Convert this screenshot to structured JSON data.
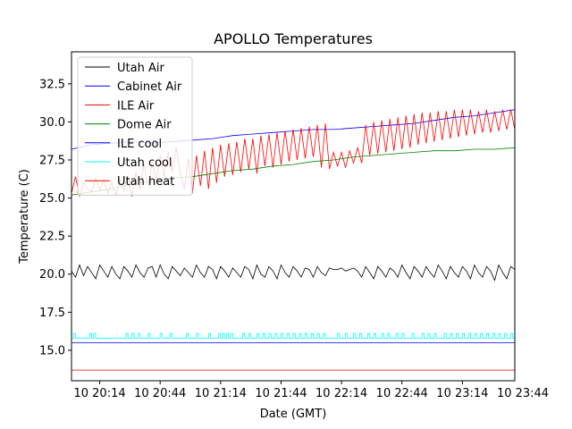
{
  "chart_data": {
    "type": "line",
    "title": "APOLLO Temperatures",
    "xlabel": "Date (GMT)",
    "ylabel": "Temperature (C)",
    "xlim": [
      0,
      220
    ],
    "ylim": [
      13.0,
      34.6
    ],
    "grid": false,
    "legend_position": "top-left",
    "x_unit": "minutes after 20:00 GMT",
    "x_ticks": [
      14,
      44,
      74,
      104,
      134,
      164,
      194,
      224
    ],
    "x_tick_labels": [
      "10 20:14",
      "10 20:44",
      "10 21:14",
      "10 21:44",
      "10 22:14",
      "10 22:44",
      "10 23:14",
      "10 23:44"
    ],
    "y_ticks": [
      15.0,
      17.5,
      20.0,
      22.5,
      25.0,
      27.5,
      30.0,
      32.5
    ],
    "y_tick_labels": [
      "15.0",
      "17.5",
      "20.0",
      "22.5",
      "25.0",
      "27.5",
      "30.0",
      "32.5"
    ],
    "series": [
      {
        "name": "Utah Air",
        "color": "#000000",
        "x": [
          0,
          2,
          4,
          6,
          8,
          10,
          12,
          14,
          16,
          18,
          20,
          22,
          24,
          26,
          28,
          30,
          32,
          34,
          36,
          38,
          40,
          42,
          44,
          46,
          48,
          50,
          52,
          54,
          56,
          58,
          60,
          62,
          64,
          66,
          68,
          70,
          72,
          74,
          76,
          78,
          80,
          82,
          84,
          86,
          88,
          90,
          92,
          94,
          96,
          98,
          100,
          102,
          104,
          106,
          108,
          110,
          112,
          114,
          116,
          118,
          120,
          122,
          124,
          126,
          128,
          130,
          132,
          134,
          136,
          138,
          140,
          142,
          144,
          146,
          148,
          150,
          152,
          154,
          156,
          158,
          160,
          162,
          164,
          166,
          168,
          170,
          172,
          174,
          176,
          178,
          180,
          182,
          184,
          186,
          188,
          190,
          192,
          194,
          196,
          198,
          200,
          202,
          204,
          206,
          208,
          210,
          212,
          214,
          216,
          218,
          220
        ],
        "y": [
          20.2,
          19.8,
          20.6,
          19.9,
          20.5,
          20.1,
          19.7,
          20.6,
          20.2,
          19.8,
          20.5,
          20.0,
          19.7,
          20.5,
          20.2,
          19.8,
          20.6,
          20.1,
          19.8,
          20.4,
          20.5,
          19.8,
          20.6,
          20.0,
          19.7,
          20.5,
          20.2,
          19.9,
          20.4,
          20.1,
          19.8,
          20.6,
          20.1,
          19.8,
          20.5,
          20.3,
          19.7,
          20.5,
          20.2,
          19.8,
          20.4,
          20.1,
          19.8,
          20.5,
          20.3,
          19.7,
          20.6,
          20.0,
          19.8,
          20.5,
          20.2,
          19.7,
          20.6,
          20.1,
          19.8,
          20.5,
          20.2,
          19.8,
          20.4,
          20.3,
          19.8,
          20.5,
          20.1,
          19.9,
          20.4,
          20.3,
          20.3,
          20.4,
          20.2,
          20.3,
          20.4,
          20.2,
          19.8,
          20.5,
          20.1,
          19.7,
          20.5,
          20.2,
          19.8,
          20.4,
          20.2,
          19.8,
          20.6,
          20.1,
          19.7,
          20.5,
          20.2,
          19.8,
          20.5,
          20.1,
          19.8,
          20.6,
          20.2,
          19.7,
          20.5,
          20.1,
          19.8,
          20.5,
          20.2,
          19.7,
          20.6,
          20.1,
          19.8,
          20.5,
          20.2,
          19.6,
          20.6,
          20.1,
          19.7,
          20.5,
          20.3
        ]
      },
      {
        "name": "Cabinet Air",
        "color": "#0000ff",
        "x": [
          0,
          10,
          20,
          30,
          40,
          50,
          60,
          70,
          80,
          90,
          100,
          110,
          120,
          130,
          140,
          150,
          160,
          170,
          180,
          190,
          200,
          210,
          220
        ],
        "y": [
          28.2,
          28.5,
          28.6,
          28.7,
          28.6,
          28.7,
          28.8,
          28.9,
          29.1,
          29.2,
          29.3,
          29.4,
          29.5,
          29.5,
          29.6,
          29.7,
          29.8,
          29.9,
          30.1,
          30.3,
          30.4,
          30.6,
          30.8
        ]
      },
      {
        "name": "ILE Air",
        "color": "#ff0000",
        "x": [
          0,
          2,
          4,
          6,
          8,
          10,
          12,
          14,
          16,
          18,
          20,
          22,
          24,
          26,
          28,
          30,
          32,
          34,
          36,
          38,
          40,
          42,
          44,
          46,
          48,
          50,
          52,
          54,
          56,
          58,
          60,
          62,
          64,
          66,
          68,
          70,
          72,
          74,
          76,
          78,
          80,
          82,
          84,
          86,
          88,
          90,
          92,
          94,
          96,
          98,
          100,
          102,
          104,
          106,
          108,
          110,
          112,
          114,
          116,
          118,
          120,
          122,
          124,
          126,
          128,
          130,
          132,
          134,
          136,
          138,
          140,
          142,
          144,
          146,
          148,
          150,
          152,
          154,
          156,
          158,
          160,
          162,
          164,
          166,
          168,
          170,
          172,
          174,
          176,
          178,
          180,
          182,
          184,
          186,
          188,
          190,
          192,
          194,
          196,
          198,
          200,
          202,
          204,
          206,
          208,
          210,
          212,
          214,
          216,
          218,
          220
        ],
        "y": [
          25.3,
          26.4,
          25.1,
          26.0,
          25.6,
          25.4,
          26.3,
          25.5,
          26.2,
          25.3,
          26.0,
          25.2,
          26.2,
          25.5,
          26.4,
          25.1,
          26.7,
          25.6,
          27.2,
          25.8,
          27.4,
          26.1,
          27.8,
          26.4,
          28.0,
          26.7,
          28.3,
          26.6,
          25.6,
          27.6,
          25.3,
          27.8,
          25.8,
          28.1,
          25.6,
          28.3,
          26.0,
          28.5,
          26.4,
          28.6,
          26.5,
          28.7,
          26.7,
          28.9,
          26.9,
          28.9,
          26.6,
          29.1,
          27.1,
          29.2,
          27.0,
          29.3,
          27.2,
          29.4,
          27.4,
          29.5,
          27.5,
          29.6,
          27.6,
          29.7,
          27.7,
          29.8,
          27.0,
          29.9,
          26.9,
          28.0,
          27.1,
          28.0,
          27.0,
          28.1,
          27.3,
          28.3,
          27.3,
          29.8,
          27.8,
          30.0,
          27.9,
          30.1,
          28.0,
          30.2,
          28.1,
          30.3,
          28.2,
          30.4,
          28.3,
          30.5,
          28.5,
          30.6,
          28.6,
          30.6,
          28.7,
          30.7,
          28.8,
          30.7,
          28.9,
          30.8,
          29.0,
          30.8,
          29.1,
          30.8,
          29.2,
          30.7,
          29.3,
          30.8,
          29.3,
          30.7,
          29.4,
          30.8,
          29.5,
          30.8,
          29.5
        ]
      },
      {
        "name": "Dome Air",
        "color": "#008000",
        "x": [
          0,
          10,
          20,
          30,
          40,
          50,
          60,
          70,
          80,
          90,
          100,
          110,
          120,
          130,
          140,
          150,
          160,
          170,
          180,
          190,
          200,
          210,
          220
        ],
        "y": [
          25.2,
          25.4,
          25.6,
          25.9,
          26.1,
          26.3,
          26.4,
          26.6,
          26.8,
          26.9,
          27.1,
          27.2,
          27.4,
          27.5,
          27.7,
          27.8,
          27.9,
          28.0,
          28.1,
          28.1,
          28.2,
          28.2,
          28.3
        ]
      },
      {
        "name": "ILE cool",
        "color": "#0000ff",
        "x": [
          0,
          220
        ],
        "y": [
          15.5,
          15.5
        ]
      },
      {
        "name": "Utah cool",
        "color": "#00ffff",
        "x": [
          0,
          220
        ],
        "y": [
          15.8,
          15.8
        ],
        "on_state": 16.1,
        "on_times": [
          1,
          9,
          11,
          27,
          30,
          33,
          38,
          44,
          49,
          57,
          62,
          68,
          73,
          75,
          77,
          79,
          85,
          88,
          92,
          95,
          98,
          101,
          104,
          107,
          110,
          113,
          116,
          119,
          122,
          125,
          132,
          136,
          140,
          143,
          147,
          150,
          154,
          157,
          161,
          164,
          169,
          174,
          177,
          180,
          185,
          188,
          191,
          194,
          197,
          200,
          203,
          206,
          209,
          212,
          215,
          218
        ]
      },
      {
        "name": "Utah heat",
        "color": "#ff0000",
        "x": [
          0,
          220
        ],
        "y": [
          13.7,
          13.7
        ]
      }
    ]
  }
}
